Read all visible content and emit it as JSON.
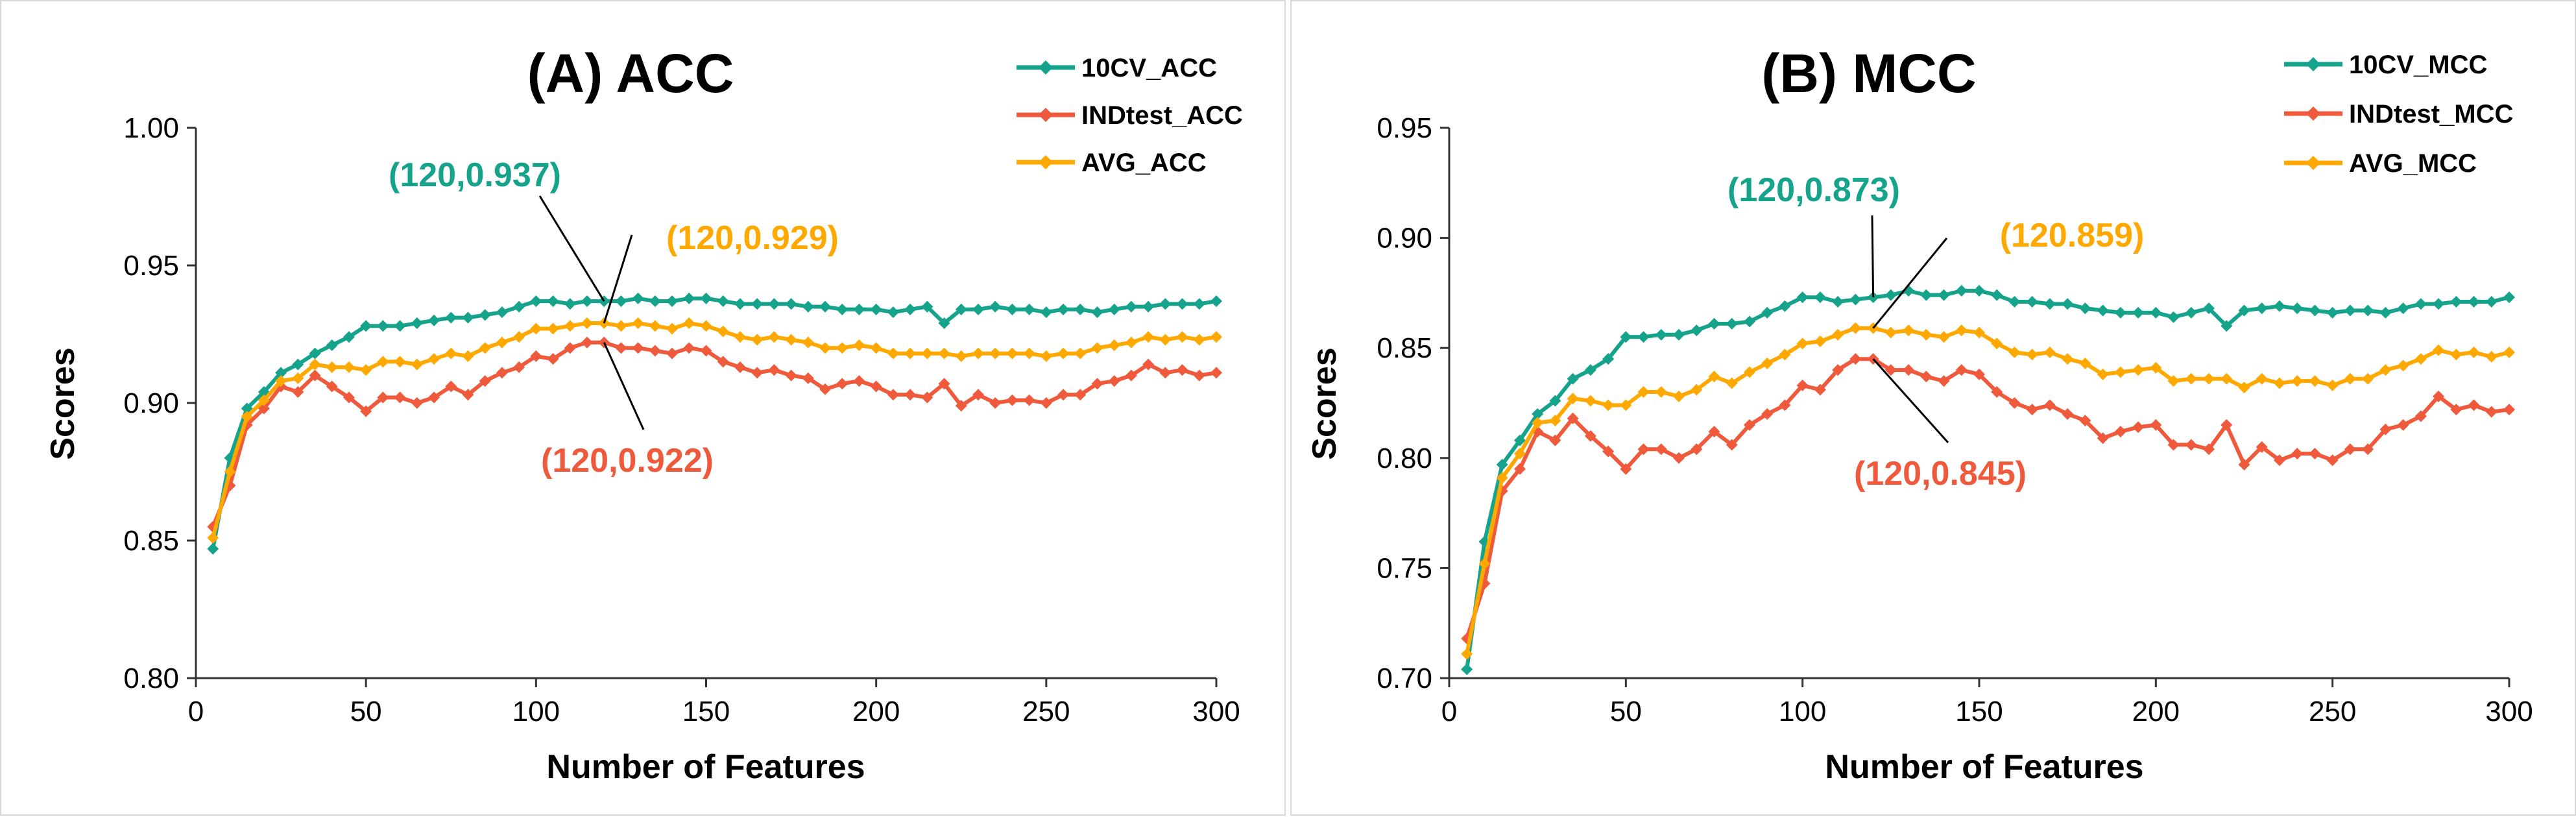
{
  "colors": {
    "cv": "#16A38B",
    "ind": "#F05A3C",
    "avg": "#FFA900"
  },
  "chart_data": [
    {
      "type": "line",
      "title": "(A) ACC",
      "xlabel": "Number of Features",
      "ylabel": "Scores",
      "xlim": [
        0,
        300
      ],
      "ylim": [
        0.8,
        1.0
      ],
      "xticks": [
        0,
        50,
        100,
        150,
        200,
        250,
        300
      ],
      "yticks": [
        0.8,
        0.85,
        0.9,
        0.95,
        1.0
      ],
      "tick_decimals": 2,
      "legend_position": "top-right",
      "series": [
        {
          "name": "10CV_ACC",
          "color_key": "cv",
          "x": [
            5,
            10,
            15,
            20,
            25,
            30,
            35,
            40,
            45,
            50,
            55,
            60,
            65,
            70,
            75,
            80,
            85,
            90,
            95,
            100,
            105,
            110,
            115,
            120,
            125,
            130,
            135,
            140,
            145,
            150,
            155,
            160,
            165,
            170,
            175,
            180,
            185,
            190,
            195,
            200,
            205,
            210,
            215,
            220,
            225,
            230,
            235,
            240,
            245,
            250,
            255,
            260,
            265,
            270,
            275,
            280,
            285,
            290,
            295,
            300
          ],
          "y": [
            0.847,
            0.88,
            0.898,
            0.904,
            0.911,
            0.914,
            0.918,
            0.921,
            0.924,
            0.928,
            0.928,
            0.928,
            0.929,
            0.93,
            0.931,
            0.931,
            0.932,
            0.933,
            0.935,
            0.937,
            0.937,
            0.936,
            0.937,
            0.937,
            0.937,
            0.938,
            0.937,
            0.937,
            0.938,
            0.938,
            0.937,
            0.936,
            0.936,
            0.936,
            0.936,
            0.935,
            0.935,
            0.934,
            0.934,
            0.934,
            0.933,
            0.934,
            0.935,
            0.929,
            0.934,
            0.934,
            0.935,
            0.934,
            0.934,
            0.933,
            0.934,
            0.934,
            0.933,
            0.934,
            0.935,
            0.935,
            0.936,
            0.936,
            0.936,
            0.937
          ]
        },
        {
          "name": "INDtest_ACC",
          "color_key": "ind",
          "x": [
            5,
            10,
            15,
            20,
            25,
            30,
            35,
            40,
            45,
            50,
            55,
            60,
            65,
            70,
            75,
            80,
            85,
            90,
            95,
            100,
            105,
            110,
            115,
            120,
            125,
            130,
            135,
            140,
            145,
            150,
            155,
            160,
            165,
            170,
            175,
            180,
            185,
            190,
            195,
            200,
            205,
            210,
            215,
            220,
            225,
            230,
            235,
            240,
            245,
            250,
            255,
            260,
            265,
            270,
            275,
            280,
            285,
            290,
            295,
            300
          ],
          "y": [
            0.855,
            0.87,
            0.892,
            0.898,
            0.906,
            0.904,
            0.91,
            0.906,
            0.902,
            0.897,
            0.902,
            0.902,
            0.9,
            0.902,
            0.906,
            0.903,
            0.908,
            0.911,
            0.913,
            0.917,
            0.916,
            0.92,
            0.922,
            0.922,
            0.92,
            0.92,
            0.919,
            0.918,
            0.92,
            0.919,
            0.915,
            0.913,
            0.911,
            0.912,
            0.91,
            0.909,
            0.905,
            0.907,
            0.908,
            0.906,
            0.903,
            0.903,
            0.902,
            0.907,
            0.899,
            0.903,
            0.9,
            0.901,
            0.901,
            0.9,
            0.903,
            0.903,
            0.907,
            0.908,
            0.91,
            0.914,
            0.911,
            0.912,
            0.91,
            0.911
          ]
        },
        {
          "name": "AVG_ACC",
          "color_key": "avg",
          "x": [
            5,
            10,
            15,
            20,
            25,
            30,
            35,
            40,
            45,
            50,
            55,
            60,
            65,
            70,
            75,
            80,
            85,
            90,
            95,
            100,
            105,
            110,
            115,
            120,
            125,
            130,
            135,
            140,
            145,
            150,
            155,
            160,
            165,
            170,
            175,
            180,
            185,
            190,
            195,
            200,
            205,
            210,
            215,
            220,
            225,
            230,
            235,
            240,
            245,
            250,
            255,
            260,
            265,
            270,
            275,
            280,
            285,
            290,
            295,
            300
          ],
          "y": [
            0.851,
            0.875,
            0.895,
            0.901,
            0.908,
            0.909,
            0.914,
            0.913,
            0.913,
            0.912,
            0.915,
            0.915,
            0.914,
            0.916,
            0.918,
            0.917,
            0.92,
            0.922,
            0.924,
            0.927,
            0.927,
            0.928,
            0.929,
            0.929,
            0.928,
            0.929,
            0.928,
            0.927,
            0.929,
            0.928,
            0.926,
            0.924,
            0.923,
            0.924,
            0.923,
            0.922,
            0.92,
            0.92,
            0.921,
            0.92,
            0.918,
            0.918,
            0.918,
            0.918,
            0.917,
            0.918,
            0.918,
            0.918,
            0.918,
            0.917,
            0.918,
            0.918,
            0.92,
            0.921,
            0.922,
            0.924,
            0.923,
            0.924,
            0.923,
            0.924
          ]
        }
      ],
      "annotations": [
        {
          "text": "(120,0.937)",
          "color_key": "cv",
          "x": 120,
          "y": 0.937
        },
        {
          "text": "(120,0.929)",
          "color_key": "avg",
          "x": 120,
          "y": 0.929
        },
        {
          "text": "(120,0.922)",
          "color_key": "ind",
          "x": 120,
          "y": 0.922
        }
      ]
    },
    {
      "type": "line",
      "title": "(B) MCC",
      "xlabel": "Number of Features",
      "ylabel": "Scores",
      "xlim": [
        0,
        300
      ],
      "ylim": [
        0.7,
        0.95
      ],
      "xticks": [
        0,
        50,
        100,
        150,
        200,
        250,
        300
      ],
      "yticks": [
        0.7,
        0.75,
        0.8,
        0.85,
        0.9,
        0.95
      ],
      "tick_decimals": 2,
      "legend_position": "top-right",
      "series": [
        {
          "name": "10CV_MCC",
          "color_key": "cv",
          "x": [
            5,
            10,
            15,
            20,
            25,
            30,
            35,
            40,
            45,
            50,
            55,
            60,
            65,
            70,
            75,
            80,
            85,
            90,
            95,
            100,
            105,
            110,
            115,
            120,
            125,
            130,
            135,
            140,
            145,
            150,
            155,
            160,
            165,
            170,
            175,
            180,
            185,
            190,
            195,
            200,
            205,
            210,
            215,
            220,
            225,
            230,
            235,
            240,
            245,
            250,
            255,
            260,
            265,
            270,
            275,
            280,
            285,
            290,
            295,
            300
          ],
          "y": [
            0.704,
            0.762,
            0.797,
            0.808,
            0.82,
            0.826,
            0.836,
            0.84,
            0.845,
            0.855,
            0.855,
            0.856,
            0.856,
            0.858,
            0.861,
            0.861,
            0.862,
            0.866,
            0.869,
            0.873,
            0.873,
            0.871,
            0.872,
            0.873,
            0.874,
            0.876,
            0.874,
            0.874,
            0.876,
            0.876,
            0.874,
            0.871,
            0.871,
            0.87,
            0.87,
            0.868,
            0.867,
            0.866,
            0.866,
            0.866,
            0.864,
            0.866,
            0.868,
            0.86,
            0.867,
            0.868,
            0.869,
            0.868,
            0.867,
            0.866,
            0.867,
            0.867,
            0.866,
            0.868,
            0.87,
            0.87,
            0.871,
            0.871,
            0.871,
            0.873
          ]
        },
        {
          "name": "INDtest_MCC",
          "color_key": "ind",
          "x": [
            5,
            10,
            15,
            20,
            25,
            30,
            35,
            40,
            45,
            50,
            55,
            60,
            65,
            70,
            75,
            80,
            85,
            90,
            95,
            100,
            105,
            110,
            115,
            120,
            125,
            130,
            135,
            140,
            145,
            150,
            155,
            160,
            165,
            170,
            175,
            180,
            185,
            190,
            195,
            200,
            205,
            210,
            215,
            220,
            225,
            230,
            235,
            240,
            245,
            250,
            255,
            260,
            265,
            270,
            275,
            280,
            285,
            290,
            295,
            300
          ],
          "y": [
            0.718,
            0.743,
            0.785,
            0.795,
            0.812,
            0.808,
            0.818,
            0.81,
            0.803,
            0.795,
            0.804,
            0.804,
            0.8,
            0.804,
            0.812,
            0.806,
            0.815,
            0.82,
            0.824,
            0.833,
            0.831,
            0.84,
            0.845,
            0.845,
            0.84,
            0.84,
            0.837,
            0.835,
            0.84,
            0.838,
            0.83,
            0.825,
            0.822,
            0.824,
            0.82,
            0.817,
            0.809,
            0.812,
            0.814,
            0.815,
            0.806,
            0.806,
            0.804,
            0.815,
            0.797,
            0.805,
            0.799,
            0.802,
            0.802,
            0.799,
            0.804,
            0.804,
            0.813,
            0.815,
            0.819,
            0.828,
            0.822,
            0.824,
            0.821,
            0.822
          ]
        },
        {
          "name": "AVG_MCC",
          "color_key": "avg",
          "x": [
            5,
            10,
            15,
            20,
            25,
            30,
            35,
            40,
            45,
            50,
            55,
            60,
            65,
            70,
            75,
            80,
            85,
            90,
            95,
            100,
            105,
            110,
            115,
            120,
            125,
            130,
            135,
            140,
            145,
            150,
            155,
            160,
            165,
            170,
            175,
            180,
            185,
            190,
            195,
            200,
            205,
            210,
            215,
            220,
            225,
            230,
            235,
            240,
            245,
            250,
            255,
            260,
            265,
            270,
            275,
            280,
            285,
            290,
            295,
            300
          ],
          "y": [
            0.711,
            0.752,
            0.791,
            0.802,
            0.816,
            0.817,
            0.827,
            0.826,
            0.824,
            0.824,
            0.83,
            0.83,
            0.828,
            0.831,
            0.837,
            0.834,
            0.839,
            0.843,
            0.847,
            0.852,
            0.853,
            0.856,
            0.859,
            0.859,
            0.857,
            0.858,
            0.856,
            0.855,
            0.858,
            0.857,
            0.852,
            0.848,
            0.847,
            0.848,
            0.845,
            0.843,
            0.838,
            0.839,
            0.84,
            0.841,
            0.835,
            0.836,
            0.836,
            0.836,
            0.832,
            0.836,
            0.834,
            0.835,
            0.835,
            0.833,
            0.836,
            0.836,
            0.84,
            0.842,
            0.845,
            0.849,
            0.847,
            0.848,
            0.846,
            0.848
          ]
        }
      ],
      "annotations": [
        {
          "text": "(120,0.873)",
          "color_key": "cv",
          "x": 120,
          "y": 0.873
        },
        {
          "text": "(120.859)",
          "color_key": "avg",
          "x": 120,
          "y": 0.859
        },
        {
          "text": "(120,0.845)",
          "color_key": "ind",
          "x": 120,
          "y": 0.845
        }
      ]
    }
  ]
}
